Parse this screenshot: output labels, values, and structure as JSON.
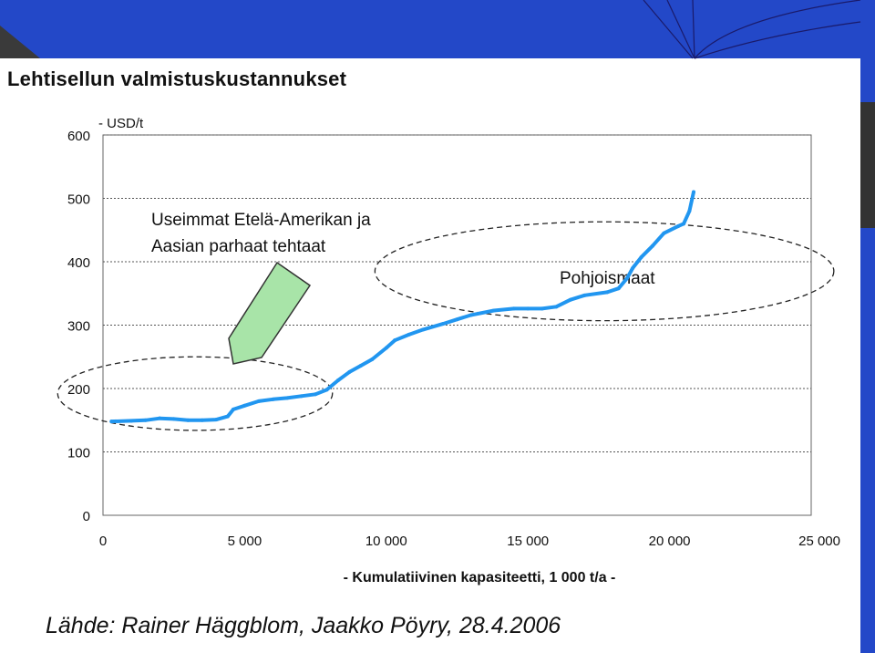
{
  "slide": {
    "title": "Lehtisellun valmistuskustannukset",
    "source": "Lähde: Rainer Häggblom, Jaakko Pöyry, 28.4.2006"
  },
  "colors": {
    "header": "#2348c8",
    "line": "#2196f0",
    "arrow": "#a8e4a8",
    "grid": "#555555"
  },
  "chart_data": {
    "type": "line",
    "title": "",
    "xlabel": "- Kumulatiivinen kapasiteetti, 1 000 t/a -",
    "ylabel": "- USD/t",
    "xlim": [
      0,
      25000
    ],
    "ylim": [
      0,
      600
    ],
    "grid": "horizontal dotted",
    "x_tick_labels": [
      "0",
      "5 000",
      "10 000",
      "15 000",
      "20 000",
      "25 000"
    ],
    "y_tick_labels": [
      "0",
      "100",
      "200",
      "300",
      "400",
      "500",
      "600"
    ],
    "series": [
      {
        "points": [
          [
            300,
            148
          ],
          [
            1000,
            149
          ],
          [
            1500,
            150
          ],
          [
            2000,
            153
          ],
          [
            2500,
            152
          ],
          [
            3000,
            150
          ],
          [
            3500,
            150
          ],
          [
            4000,
            151
          ],
          [
            4400,
            156
          ],
          [
            4600,
            167
          ],
          [
            5000,
            173
          ],
          [
            5500,
            180
          ],
          [
            6000,
            183
          ],
          [
            6500,
            185
          ],
          [
            7000,
            188
          ],
          [
            7500,
            191
          ],
          [
            7900,
            198
          ],
          [
            8300,
            213
          ],
          [
            8700,
            226
          ],
          [
            9100,
            236
          ],
          [
            9500,
            246
          ],
          [
            10000,
            264
          ],
          [
            10300,
            276
          ],
          [
            10800,
            285
          ],
          [
            11300,
            293
          ],
          [
            12000,
            302
          ],
          [
            12500,
            309
          ],
          [
            13000,
            316
          ],
          [
            13800,
            323
          ],
          [
            14500,
            326
          ],
          [
            15000,
            326
          ],
          [
            15500,
            326
          ],
          [
            16000,
            329
          ],
          [
            16500,
            340
          ],
          [
            17000,
            347
          ],
          [
            17800,
            352
          ],
          [
            18200,
            358
          ],
          [
            18500,
            374
          ],
          [
            18700,
            390
          ],
          [
            19000,
            407
          ],
          [
            19400,
            425
          ],
          [
            19800,
            445
          ],
          [
            20300,
            456
          ],
          [
            20500,
            460
          ],
          [
            20700,
            480
          ],
          [
            20850,
            510
          ]
        ]
      }
    ],
    "annotations": [
      {
        "text": "Useimmat Etelä-Amerikan ja",
        "type": "text"
      },
      {
        "text": "Aasian parhaat tehtaat",
        "type": "text"
      },
      {
        "text": "Pohjoismaat",
        "type": "text"
      },
      {
        "type": "ellipse",
        "cx": 3250,
        "cy": 192,
        "rx": 4850,
        "ry": 58
      },
      {
        "type": "ellipse",
        "cx": 17700,
        "cy": 385,
        "rx": 8100,
        "ry": 78
      }
    ]
  }
}
